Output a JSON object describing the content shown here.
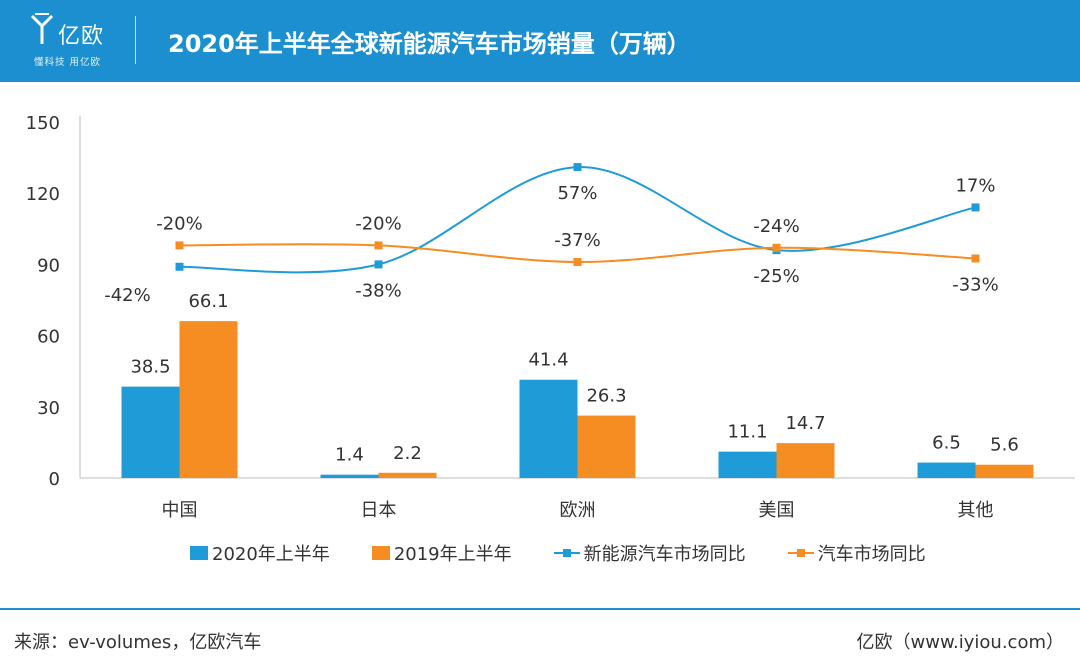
{
  "header": {
    "logo_name": "亿欧",
    "logo_tagline": "懂科技 用亿欧",
    "title": "2020年上半年全球新能源汽车市场销量（万辆）"
  },
  "colors": {
    "header_bg": "#1b8fcf",
    "series_2020": "#1f9bd7",
    "series_2019": "#f58d23"
  },
  "chart_data": {
    "type": "bar",
    "title": "2020年上半年全球新能源汽车市场销量（万辆）",
    "categories": [
      "中国",
      "日本",
      "欧洲",
      "美国",
      "其他"
    ],
    "ylim": [
      0,
      150
    ],
    "yticks": [
      0,
      30,
      60,
      90,
      120,
      150
    ],
    "grid": false,
    "legend_position": "bottom",
    "series": [
      {
        "name": "2020年上半年",
        "kind": "bar",
        "color": "#1f9bd7",
        "values": [
          38.5,
          1.4,
          41.4,
          11.1,
          6.5
        ],
        "labels": [
          "38.5",
          "1.4",
          "41.4",
          "11.1",
          "6.5"
        ]
      },
      {
        "name": "2019年上半年",
        "kind": "bar",
        "color": "#f58d23",
        "values": [
          66.1,
          2.2,
          26.3,
          14.7,
          5.6
        ],
        "labels": [
          "66.1",
          "2.2",
          "26.3",
          "14.7",
          "5.6"
        ]
      },
      {
        "name": "新能源汽车市场同比",
        "kind": "line",
        "color": "#1f9bd7",
        "plot_values": [
          89,
          90,
          131,
          96,
          114
        ],
        "labels": [
          "-42%",
          "-38%",
          "57%",
          "-25%",
          "17%"
        ],
        "label_side": [
          "above-left",
          "below",
          "below",
          "below",
          "above"
        ]
      },
      {
        "name": "汽车市场同比",
        "kind": "line",
        "color": "#f58d23",
        "plot_values": [
          98,
          98,
          91,
          97,
          92.5
        ],
        "labels": [
          "-20%",
          "-20%",
          "-37%",
          "-24%",
          "-33%"
        ],
        "label_side": [
          "above",
          "above",
          "above",
          "above",
          "below"
        ]
      }
    ]
  },
  "footer": {
    "source": "来源：ev-volumes，亿欧汽车",
    "brand": "亿欧（www.iyiou.com）"
  }
}
